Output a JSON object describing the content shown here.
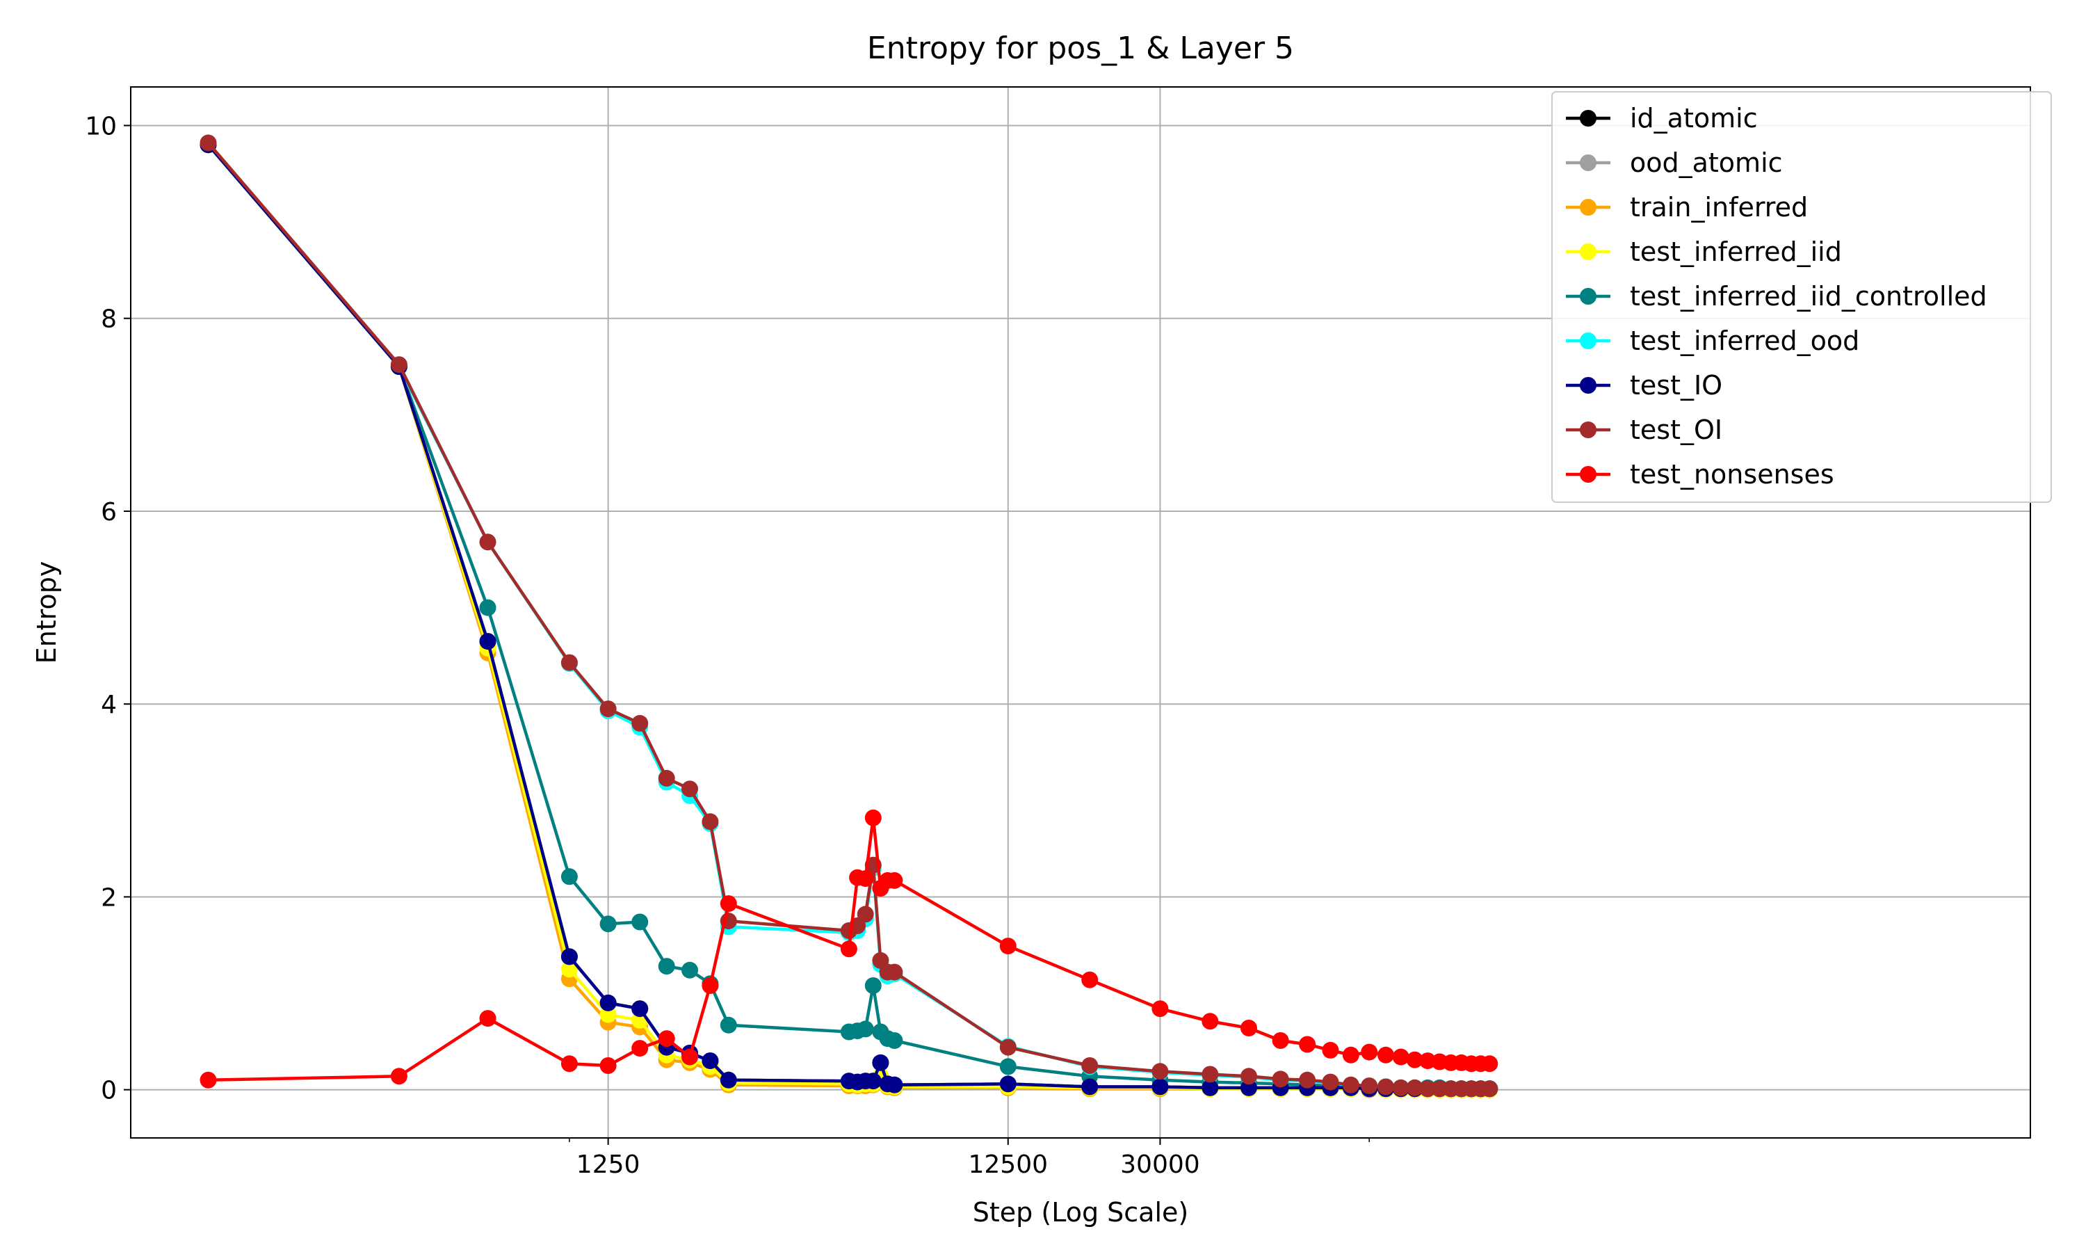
{
  "chart_data": {
    "type": "line",
    "title": "Entropy for pos_1 & Layer 5",
    "xlabel": "Step (Log Scale)",
    "ylabel": "Entropy",
    "xscale": "log",
    "xlim": [
      80,
      4500000
    ],
    "ylim": [
      -0.5,
      10.4
    ],
    "xticks": [
      {
        "value": 1250,
        "label": "1250"
      },
      {
        "value": 12500,
        "label": "12500"
      },
      {
        "value": 30000,
        "label": "30000"
      }
    ],
    "x_minor_ticks": [
      1000,
      100000
    ],
    "yticks": [
      {
        "value": 0,
        "label": "0"
      },
      {
        "value": 2,
        "label": "2"
      },
      {
        "value": 4,
        "label": "4"
      },
      {
        "value": 6,
        "label": "6"
      },
      {
        "value": 8,
        "label": "8"
      },
      {
        "value": 10,
        "label": "10"
      }
    ],
    "grid": true,
    "legend_position": "top-right",
    "x": [
      125,
      375,
      625,
      1000,
      1250,
      1500,
      1750,
      2000,
      2250,
      2500,
      5000,
      5250,
      5500,
      5750,
      6000,
      6250,
      6500,
      12500,
      20000,
      30000,
      40000,
      50000,
      60000,
      70000,
      80000,
      90000,
      100000,
      110000,
      120000,
      130000,
      140000,
      150000,
      160000,
      170000,
      180000,
      190000,
      200000
    ],
    "series": [
      {
        "name": "id_atomic",
        "color": "#000000",
        "values": [
          9.8,
          7.5,
          4.65,
          1.38,
          0.9,
          0.84,
          0.44,
          0.38,
          0.3,
          0.1,
          0.09,
          0.08,
          0.09,
          0.09,
          0.28,
          0.06,
          0.05,
          0.06,
          0.03,
          0.03,
          0.02,
          0.02,
          0.02,
          0.02,
          0.02,
          0.02,
          0.01,
          0.01,
          0.01,
          0.01,
          0.01,
          0.01,
          0.01,
          0.01,
          0.01,
          0.01,
          0.01
        ]
      },
      {
        "name": "ood_atomic",
        "color": "#a0a0a0",
        "values": [
          9.8,
          7.5,
          4.65,
          1.38,
          0.9,
          0.84,
          0.44,
          0.38,
          0.3,
          0.1,
          0.09,
          0.08,
          0.09,
          0.09,
          0.28,
          0.06,
          0.05,
          0.06,
          0.03,
          0.03,
          0.02,
          0.02,
          0.02,
          0.02,
          0.02,
          0.02,
          0.01,
          0.01,
          0.01,
          0.01,
          0.01,
          0.01,
          0.01,
          0.01,
          0.01,
          0.01,
          0.01
        ]
      },
      {
        "name": "train_inferred",
        "color": "#ffa500",
        "values": [
          9.8,
          7.5,
          4.53,
          1.15,
          0.7,
          0.65,
          0.31,
          0.28,
          0.21,
          0.05,
          0.04,
          0.04,
          0.04,
          0.05,
          0.1,
          0.03,
          0.02,
          0.02,
          0.01,
          0.01,
          0.01,
          0.01,
          0.01,
          0.01,
          0.01,
          0.01,
          0.0,
          0.0,
          0.0,
          0.0,
          0.0,
          0.0,
          0.0,
          0.0,
          0.0,
          0.0,
          0.0
        ]
      },
      {
        "name": "test_inferred_iid",
        "color": "#ffff00",
        "values": [
          9.8,
          7.5,
          4.58,
          1.25,
          0.78,
          0.72,
          0.36,
          0.31,
          0.24,
          0.07,
          0.06,
          0.05,
          0.06,
          0.06,
          0.14,
          0.04,
          0.03,
          0.03,
          0.02,
          0.02,
          0.01,
          0.01,
          0.01,
          0.01,
          0.01,
          0.01,
          0.01,
          0.0,
          0.0,
          0.0,
          0.0,
          0.0,
          0.0,
          0.0,
          0.0,
          0.0,
          0.0
        ]
      },
      {
        "name": "test_inferred_iid_controlled",
        "color": "#008080",
        "values": [
          9.8,
          7.5,
          5.0,
          2.21,
          1.72,
          1.74,
          1.28,
          1.24,
          1.1,
          0.67,
          0.6,
          0.61,
          0.63,
          1.08,
          0.6,
          0.53,
          0.51,
          0.24,
          0.14,
          0.1,
          0.08,
          0.07,
          0.06,
          0.05,
          0.04,
          0.04,
          0.03,
          0.03,
          0.02,
          0.02,
          0.02,
          0.02,
          0.01,
          0.01,
          0.01,
          0.01,
          0.01
        ]
      },
      {
        "name": "test_inferred_ood",
        "color": "#00ffff",
        "values": [
          9.8,
          7.5,
          5.68,
          4.42,
          3.93,
          3.76,
          3.19,
          3.05,
          2.76,
          1.69,
          1.63,
          1.65,
          1.77,
          2.3,
          1.3,
          1.18,
          1.2,
          0.45,
          0.24,
          0.18,
          0.15,
          0.13,
          0.1,
          0.09,
          0.07,
          0.05,
          0.04,
          0.03,
          0.02,
          0.02,
          0.01,
          0.01,
          0.01,
          0.01,
          0.01,
          0.01,
          0.01
        ]
      },
      {
        "name": "test_IO",
        "color": "#00008b",
        "values": [
          9.8,
          7.5,
          4.65,
          1.38,
          0.9,
          0.84,
          0.44,
          0.38,
          0.3,
          0.1,
          0.09,
          0.08,
          0.09,
          0.09,
          0.28,
          0.06,
          0.05,
          0.06,
          0.03,
          0.03,
          0.02,
          0.02,
          0.02,
          0.02,
          0.02,
          0.02,
          0.01,
          0.01,
          0.01,
          0.01,
          0.01,
          0.01,
          0.01,
          0.01,
          0.01,
          0.01,
          0.01
        ]
      },
      {
        "name": "test_OI",
        "color": "#a52a2a",
        "values": [
          9.82,
          7.52,
          5.68,
          4.43,
          3.95,
          3.8,
          3.23,
          3.12,
          2.78,
          1.75,
          1.65,
          1.7,
          1.82,
          2.33,
          1.34,
          1.22,
          1.22,
          0.44,
          0.25,
          0.19,
          0.16,
          0.14,
          0.11,
          0.1,
          0.08,
          0.05,
          0.04,
          0.03,
          0.02,
          0.02,
          0.01,
          0.01,
          0.01,
          0.01,
          0.01,
          0.01,
          0.01
        ]
      },
      {
        "name": "test_nonsenses",
        "color": "#ff0000",
        "values": [
          0.1,
          0.14,
          0.74,
          0.27,
          0.25,
          0.43,
          0.53,
          0.34,
          1.08,
          1.93,
          1.46,
          2.2,
          2.19,
          2.82,
          2.09,
          2.17,
          2.17,
          1.49,
          1.14,
          0.84,
          0.71,
          0.64,
          0.51,
          0.47,
          0.41,
          0.36,
          0.39,
          0.36,
          0.34,
          0.31,
          0.3,
          0.29,
          0.28,
          0.28,
          0.27,
          0.27,
          0.27
        ]
      }
    ]
  }
}
